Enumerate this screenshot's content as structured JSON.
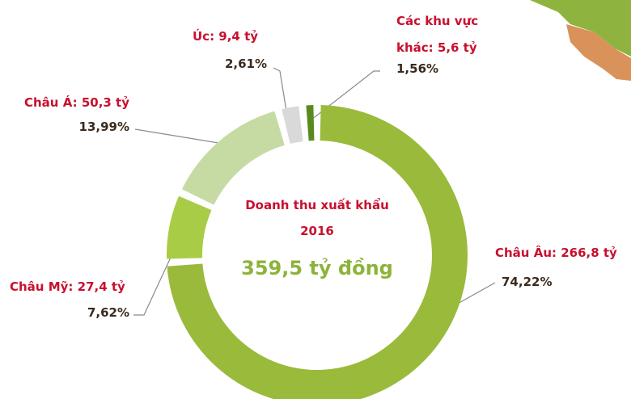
{
  "chart_data": {
    "type": "donut",
    "title": "Doanh thu xuất khẩu 2016",
    "subtitle": "359,5 tỷ đồng",
    "categories": [
      "Châu Âu: 266,8 tỷ",
      "Châu Mỹ: 27,4 tỷ",
      "Châu Á: 50,3 tỷ",
      "Úc: 9,4 tỷ",
      "Các khu vực khác: 5,6 tỷ"
    ],
    "values": [
      74.22,
      7.62,
      13.99,
      2.61,
      1.56
    ],
    "value_labels": [
      "74,22%",
      "7,62%",
      "13,99%",
      "2,61%",
      "1,56%"
    ],
    "colors": [
      "#9aba3c",
      "#a9cc46",
      "#c6dba3",
      "#d9d9d9",
      "#5a8a1e"
    ]
  }
}
